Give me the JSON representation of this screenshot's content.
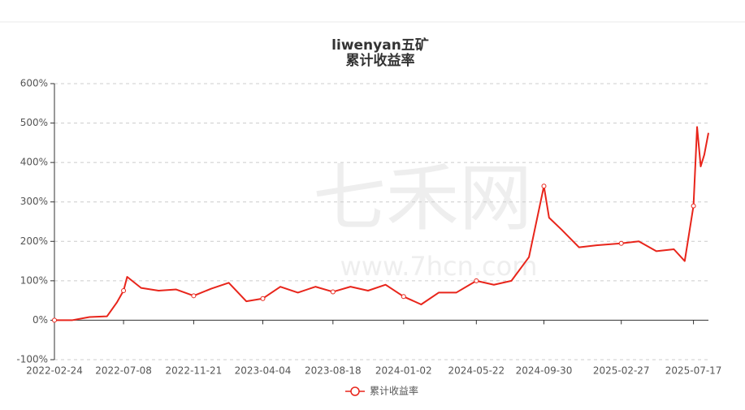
{
  "chart_data": {
    "type": "line",
    "title": "liwenyan五矿",
    "subtitle": "累计收益率",
    "watermark": [
      "七禾网",
      "www.7hcn.com"
    ],
    "x": [
      "2022-02-24",
      "2022-03-30",
      "2022-05-03",
      "2022-06-06",
      "2022-06-25",
      "2022-07-08",
      "2022-07-15",
      "2022-08-11",
      "2022-09-14",
      "2022-10-18",
      "2022-11-21",
      "2022-12-25",
      "2023-01-28",
      "2023-03-03",
      "2023-04-04",
      "2023-05-08",
      "2023-06-11",
      "2023-07-15",
      "2023-08-18",
      "2023-09-21",
      "2023-10-25",
      "2023-11-28",
      "2024-01-02",
      "2024-02-05",
      "2024-03-10",
      "2024-04-13",
      "2024-05-22",
      "2024-06-25",
      "2024-07-29",
      "2024-09-01",
      "2024-09-30",
      "2024-10-10",
      "2024-11-03",
      "2024-12-07",
      "2025-01-10",
      "2025-02-27",
      "2025-04-02",
      "2025-05-06",
      "2025-06-09",
      "2025-06-30",
      "2025-07-17",
      "2025-07-24",
      "2025-07-31",
      "2025-08-07",
      "2025-08-15"
    ],
    "series": [
      {
        "name": "累计收益率",
        "color": "#e8251b",
        "values": [
          0,
          0,
          8,
          10,
          45,
          75,
          110,
          82,
          75,
          78,
          62,
          80,
          95,
          48,
          55,
          85,
          70,
          85,
          72,
          85,
          75,
          90,
          60,
          40,
          70,
          70,
          100,
          90,
          100,
          160,
          340,
          260,
          230,
          185,
          190,
          195,
          200,
          175,
          180,
          150,
          290,
          490,
          390,
          420,
          475
        ]
      }
    ],
    "xlim": [
      "2022-02-24",
      "2025-08-15"
    ],
    "xticks": [
      "2022-02-24",
      "2022-07-08",
      "2022-11-21",
      "2023-04-04",
      "2023-08-18",
      "2024-01-02",
      "2024-05-22",
      "2024-09-30",
      "2025-02-27",
      "2025-07-17"
    ],
    "ylim": [
      -100,
      600
    ],
    "yticks": [
      {
        "value": -100,
        "label": "-100%"
      },
      {
        "value": 0,
        "label": "0%"
      },
      {
        "value": 100,
        "label": "100%"
      },
      {
        "value": 200,
        "label": "200%"
      },
      {
        "value": 300,
        "label": "300%"
      },
      {
        "value": 400,
        "label": "400%"
      },
      {
        "value": 500,
        "label": "500%"
      },
      {
        "value": 600,
        "label": "600%"
      }
    ],
    "grid": true
  }
}
